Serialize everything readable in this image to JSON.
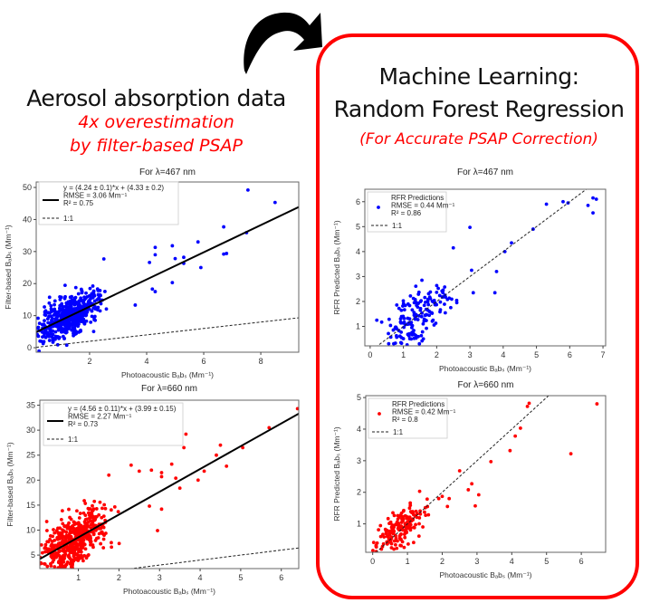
{
  "left_panel": {
    "title": "Aerosol absorption data",
    "subtitle_line1": "4x overestimation",
    "subtitle_line2": "by filter-based PSAP"
  },
  "right_panel": {
    "title_line1": "Machine Learning:",
    "title_line2": "Random Forest Regression",
    "subtitle": "(For Accurate PSAP Correction)",
    "border_color": "#ff0000"
  },
  "arrow": {
    "icon": "curved-arrow-right-icon"
  },
  "chart_data": [
    {
      "id": "psap_467",
      "type": "scatter",
      "title": "For λ=467 nm",
      "xlabel": "Photoacoustic B_abs (Mm⁻¹)",
      "ylabel": "Filter-based B_abs (Mm⁻¹)",
      "xlim": [
        0.13,
        9.33
      ],
      "ylim": [
        -1.4,
        51.7
      ],
      "xticks": [
        2,
        4,
        6,
        8
      ],
      "yticks": [
        0,
        10,
        20,
        30,
        40,
        50
      ],
      "color": "#0000ff",
      "fit": {
        "slope": 4.24,
        "intercept": 4.33
      },
      "legend": [
        "y = (4.24 ± 0.1)*x + (4.33 ± 0.2)",
        "RMSE = 3.06 Mm⁻¹",
        "R² = 0.75",
        "1:1"
      ],
      "highlight_points": [
        [
          7.55,
          49.2
        ],
        [
          8.5,
          45.3
        ],
        [
          6.7,
          37.7
        ],
        [
          7.5,
          35.9
        ],
        [
          5.8,
          33
        ],
        [
          4.9,
          31.8
        ],
        [
          4.3,
          31.3
        ],
        [
          4.3,
          29
        ],
        [
          6.7,
          29.2
        ],
        [
          6.8,
          29.4
        ],
        [
          5.3,
          28.2
        ],
        [
          5,
          27.8
        ],
        [
          2.5,
          27.7
        ],
        [
          4.1,
          26.6
        ],
        [
          5.3,
          26.3
        ],
        [
          5.9,
          25
        ],
        [
          4.9,
          20.3
        ],
        [
          4.2,
          18.3
        ],
        [
          4.3,
          17.5
        ],
        [
          3.6,
          13.3
        ],
        [
          1.2,
          0.8
        ]
      ],
      "n_cluster": 520,
      "cluster_center": [
        1.3,
        10
      ],
      "cluster_spread": [
        0.7,
        3.2
      ]
    },
    {
      "id": "rfr_467",
      "type": "scatter",
      "title": "For λ=467 nm",
      "xlabel": "Photoacoustic B_abs (Mm⁻¹)",
      "ylabel": "RFR Predicted B_abs (Mm⁻¹)",
      "xlim": [
        -0.16,
        7.08
      ],
      "ylim": [
        0.22,
        6.5
      ],
      "xticks": [
        0,
        1,
        2,
        3,
        4,
        5,
        6,
        7
      ],
      "yticks": [
        1,
        2,
        3,
        4,
        5,
        6
      ],
      "color": "#0000ff",
      "legend": [
        "RFR Predictions",
        "RMSE = 0.44 Mm⁻¹",
        "R² = 0.86",
        "1:1"
      ],
      "highlight_points": [
        [
          6.7,
          6.15
        ],
        [
          6.8,
          6.1
        ],
        [
          5.3,
          5.9
        ],
        [
          5.8,
          6
        ],
        [
          5.95,
          5.95
        ],
        [
          6.55,
          5.85
        ],
        [
          6.7,
          5.55
        ],
        [
          3.0,
          4.97
        ],
        [
          4.9,
          4.9
        ],
        [
          4.25,
          4.35
        ],
        [
          2.5,
          4.15
        ],
        [
          4.05,
          4.0
        ],
        [
          3.05,
          3.25
        ],
        [
          3.8,
          3.2
        ],
        [
          3.75,
          2.35
        ],
        [
          3.1,
          2.35
        ],
        [
          1.6,
          0.5
        ],
        [
          0.2,
          1.25
        ]
      ],
      "n_cluster": 170,
      "cluster_center": [
        1.4,
        1.4
      ],
      "cluster_spread": [
        0.6,
        0.55
      ]
    },
    {
      "id": "psap_660",
      "type": "scatter",
      "title": "For λ=660 nm",
      "xlabel": "Photoacoustic B_abs (Mm⁻¹)",
      "ylabel": "Filter-based B_abs (Mm⁻¹)",
      "xlim": [
        0.05,
        6.43
      ],
      "ylim": [
        2.3,
        36
      ],
      "xticks": [
        1,
        2,
        3,
        4,
        5,
        6
      ],
      "yticks": [
        5,
        10,
        15,
        20,
        25,
        30,
        35
      ],
      "color": "#ff0000",
      "fit": {
        "slope": 4.56,
        "intercept": 3.99
      },
      "legend": [
        "y = (4.56 ± 0.11)*x + (3.99 ± 0.15)",
        "RMSE = 2.27 Mm⁻¹",
        "R² = 0.73",
        "1:1"
      ],
      "highlight_points": [
        [
          6.4,
          34.3
        ],
        [
          5.7,
          30.5
        ],
        [
          3.65,
          29.2
        ],
        [
          3.6,
          26.5
        ],
        [
          4.5,
          27
        ],
        [
          5.05,
          26.5
        ],
        [
          4.4,
          25
        ],
        [
          4.65,
          22.8
        ],
        [
          2.3,
          23
        ],
        [
          3.3,
          23.2
        ],
        [
          3.05,
          21.5
        ],
        [
          2.8,
          22
        ],
        [
          2.5,
          21.8
        ],
        [
          3.05,
          20.7
        ],
        [
          3.4,
          20.4
        ],
        [
          4.1,
          21.8
        ],
        [
          3.95,
          20
        ],
        [
          3.5,
          18.4
        ],
        [
          2.75,
          14.8
        ],
        [
          3.05,
          14.2
        ],
        [
          2.95,
          9.9
        ],
        [
          1.75,
          21
        ]
      ],
      "n_cluster": 520,
      "cluster_center": [
        0.85,
        8
      ],
      "cluster_spread": [
        0.45,
        2.4
      ]
    },
    {
      "id": "rfr_660",
      "type": "scatter",
      "title": "For λ=660 nm",
      "xlabel": "Photoacoustic B_abs (Mm⁻¹)",
      "ylabel": "RFR Predicted B_abs (Mm⁻¹)",
      "xlim": [
        -0.2,
        6.7
      ],
      "ylim": [
        0.1,
        5.06
      ],
      "xticks": [
        0,
        1,
        2,
        3,
        4,
        5,
        6
      ],
      "yticks": [
        1,
        2,
        3,
        4,
        5
      ],
      "color": "#ff0000",
      "legend": [
        "RFR Predictions",
        "RMSE = 0.42 Mm⁻¹",
        "R² = 0.8",
        "1:1"
      ],
      "highlight_points": [
        [
          6.45,
          4.8
        ],
        [
          4.5,
          4.82
        ],
        [
          4.45,
          4.72
        ],
        [
          4.25,
          4.03
        ],
        [
          4.1,
          3.78
        ],
        [
          3.95,
          3.32
        ],
        [
          5.7,
          3.22
        ],
        [
          3.4,
          2.97
        ],
        [
          2.5,
          2.68
        ],
        [
          2.85,
          2.27
        ],
        [
          2.75,
          2.08
        ],
        [
          3.05,
          1.92
        ],
        [
          2.95,
          1.57
        ],
        [
          2.2,
          1.8
        ],
        [
          2.0,
          1.87
        ],
        [
          1.35,
          2.03
        ],
        [
          1.9,
          1.8
        ],
        [
          2.15,
          1.55
        ]
      ],
      "n_cluster": 180,
      "cluster_center": [
        0.8,
        0.8
      ],
      "cluster_spread": [
        0.42,
        0.28
      ]
    }
  ]
}
